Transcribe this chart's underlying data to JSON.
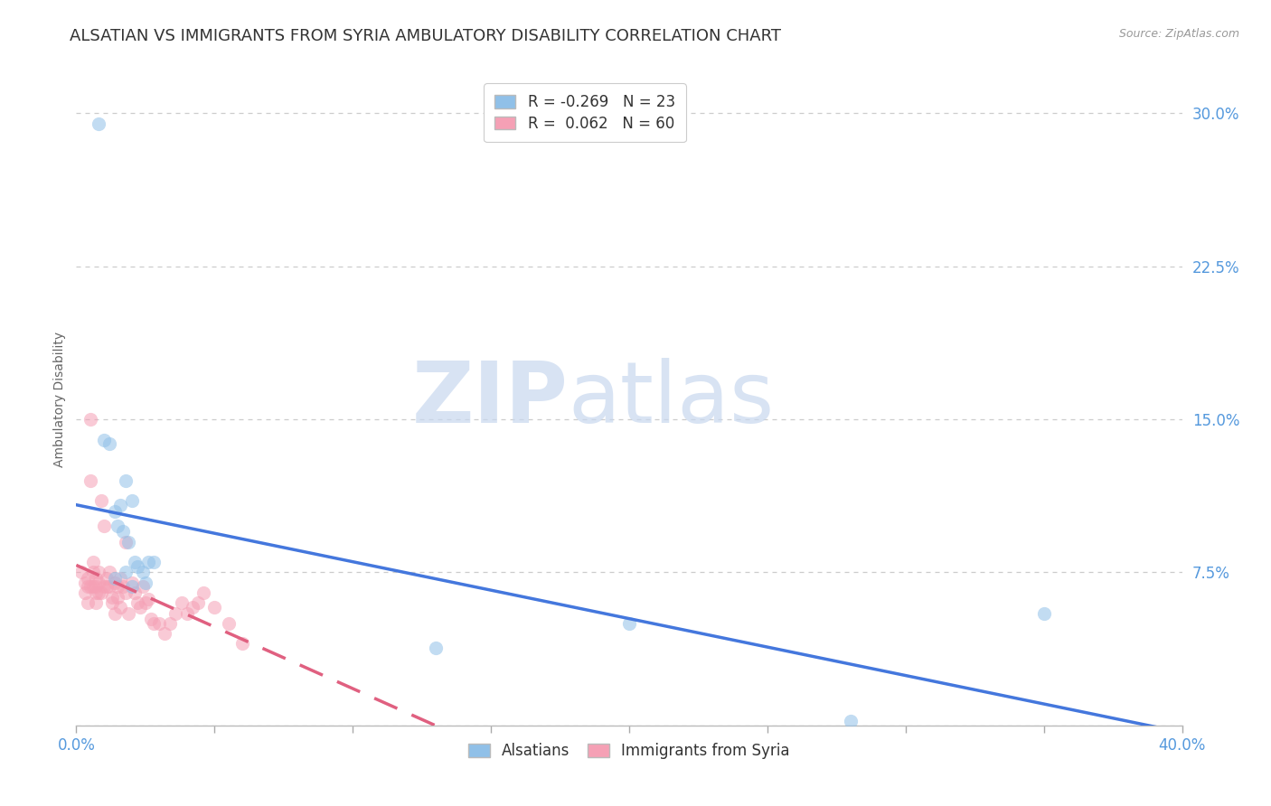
{
  "title": "ALSATIAN VS IMMIGRANTS FROM SYRIA AMBULATORY DISABILITY CORRELATION CHART",
  "source": "Source: ZipAtlas.com",
  "ylabel": "Ambulatory Disability",
  "background_color": "#ffffff",
  "watermark_zip": "ZIP",
  "watermark_atlas": "atlas",
  "alsatians": {
    "label": "Alsatians",
    "R": -0.269,
    "N": 23,
    "color_scatter": "#90c0e8",
    "color_line": "#4477dd",
    "x": [
      0.008,
      0.01,
      0.012,
      0.014,
      0.015,
      0.016,
      0.017,
      0.018,
      0.019,
      0.02,
      0.021,
      0.022,
      0.024,
      0.026,
      0.028,
      0.014,
      0.018,
      0.02,
      0.025,
      0.2,
      0.28,
      0.13,
      0.35
    ],
    "y": [
      0.295,
      0.14,
      0.138,
      0.105,
      0.098,
      0.108,
      0.095,
      0.12,
      0.09,
      0.11,
      0.08,
      0.078,
      0.075,
      0.08,
      0.08,
      0.072,
      0.075,
      0.068,
      0.07,
      0.05,
      0.002,
      0.038,
      0.055
    ]
  },
  "syria": {
    "label": "Immigrants from Syria",
    "R": 0.062,
    "N": 60,
    "color_scatter": "#f5a0b5",
    "color_line": "#e06080",
    "x": [
      0.002,
      0.003,
      0.003,
      0.004,
      0.004,
      0.004,
      0.005,
      0.005,
      0.005,
      0.006,
      0.006,
      0.006,
      0.007,
      0.007,
      0.007,
      0.007,
      0.008,
      0.008,
      0.008,
      0.009,
      0.009,
      0.01,
      0.01,
      0.011,
      0.011,
      0.012,
      0.012,
      0.013,
      0.013,
      0.014,
      0.014,
      0.015,
      0.015,
      0.016,
      0.016,
      0.017,
      0.018,
      0.018,
      0.019,
      0.02,
      0.021,
      0.022,
      0.023,
      0.024,
      0.025,
      0.026,
      0.027,
      0.028,
      0.03,
      0.032,
      0.034,
      0.036,
      0.038,
      0.04,
      0.042,
      0.044,
      0.046,
      0.05,
      0.055,
      0.06
    ],
    "y": [
      0.075,
      0.07,
      0.065,
      0.072,
      0.068,
      0.06,
      0.15,
      0.12,
      0.068,
      0.075,
      0.08,
      0.068,
      0.072,
      0.068,
      0.065,
      0.06,
      0.075,
      0.07,
      0.065,
      0.11,
      0.065,
      0.068,
      0.098,
      0.072,
      0.068,
      0.075,
      0.068,
      0.063,
      0.06,
      0.07,
      0.055,
      0.068,
      0.063,
      0.072,
      0.058,
      0.068,
      0.09,
      0.065,
      0.055,
      0.07,
      0.065,
      0.06,
      0.058,
      0.068,
      0.06,
      0.062,
      0.052,
      0.05,
      0.05,
      0.045,
      0.05,
      0.055,
      0.06,
      0.055,
      0.058,
      0.06,
      0.065,
      0.058,
      0.05,
      0.04
    ]
  },
  "xlim": [
    0.0,
    0.4
  ],
  "ylim": [
    0.0,
    0.32
  ],
  "yticks": [
    0.0,
    0.075,
    0.15,
    0.225,
    0.3
  ],
  "ytick_labels": [
    "",
    "7.5%",
    "15.0%",
    "22.5%",
    "30.0%"
  ],
  "xtick_bottom": [
    0.0,
    0.4
  ],
  "xtick_bottom_labels": [
    "0.0%",
    "40.0%"
  ],
  "grid_color": "#cccccc",
  "tick_color": "#5599dd",
  "title_fontsize": 13,
  "axis_label_fontsize": 10,
  "tick_fontsize": 12,
  "legend_fontsize": 12,
  "scatter_size": 120,
  "scatter_alpha": 0.55,
  "line_width": 2.5
}
